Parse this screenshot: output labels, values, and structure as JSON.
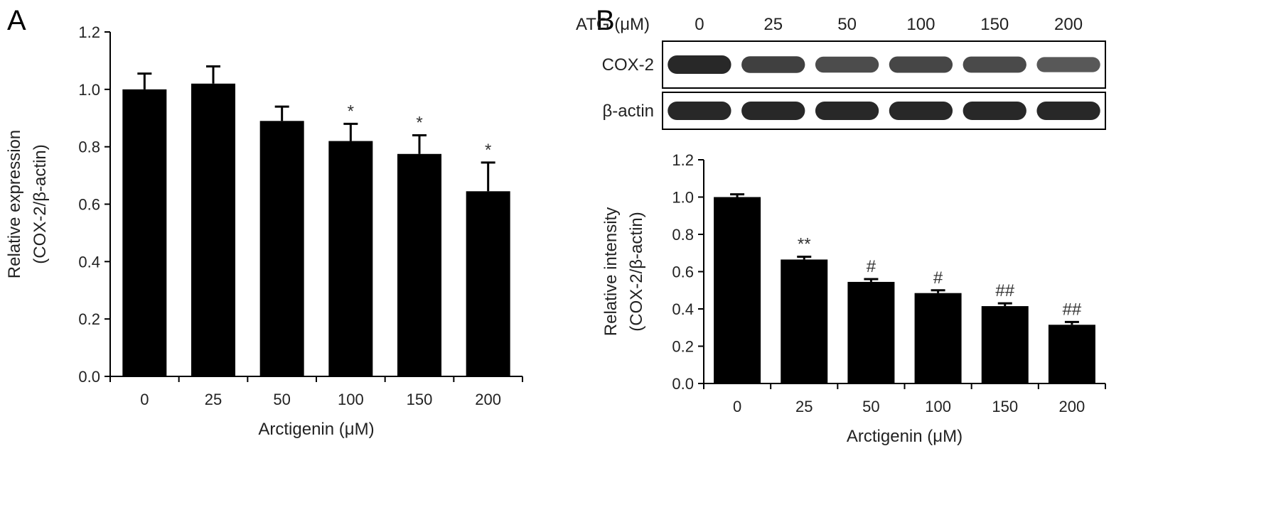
{
  "panel_a": {
    "letter": "A"
  },
  "panel_b": {
    "letter": "B",
    "blot": {
      "header_label": "ATG (μM)",
      "lane_labels": [
        "0",
        "25",
        "50",
        "100",
        "150",
        "200"
      ],
      "rows": [
        {
          "label": "COX-2",
          "band_intensity": [
            1.0,
            0.8,
            0.7,
            0.75,
            0.72,
            0.6
          ]
        },
        {
          "label": "β-actin",
          "band_intensity": [
            1.0,
            1.0,
            1.0,
            1.0,
            1.0,
            1.0
          ]
        }
      ]
    }
  },
  "chart_data": [
    {
      "type": "bar",
      "panel": "A",
      "categories": [
        "0",
        "25",
        "50",
        "100",
        "150",
        "200"
      ],
      "values": [
        1.0,
        1.02,
        0.89,
        0.82,
        0.775,
        0.645
      ],
      "error": [
        0.055,
        0.06,
        0.05,
        0.06,
        0.065,
        0.1
      ],
      "significance": [
        "",
        "",
        "",
        "*",
        "*",
        "*"
      ],
      "xlabel": "Arctigenin (μM)",
      "ylabel_line1": "Relative expression",
      "ylabel_line2": "(COX-2/β-actin)",
      "ylim": [
        0,
        1.2
      ],
      "yticks": [
        "0.0",
        "0.2",
        "0.4",
        "0.6",
        "0.8",
        "1.0",
        "1.2"
      ],
      "bar_color": "#000000",
      "grid": false
    },
    {
      "type": "bar",
      "panel": "B",
      "categories": [
        "0",
        "25",
        "50",
        "100",
        "150",
        "200"
      ],
      "values": [
        1.0,
        0.665,
        0.545,
        0.485,
        0.415,
        0.315
      ],
      "error": [
        0.015,
        0.015,
        0.015,
        0.015,
        0.015,
        0.015
      ],
      "significance": [
        "",
        "**",
        "#",
        "#",
        "##",
        "##"
      ],
      "xlabel": "Arctigenin (μM)",
      "ylabel_line1": "Relative intensity",
      "ylabel_line2": "(COX-2/β-actin)",
      "ylim": [
        0,
        1.2
      ],
      "yticks": [
        "0.0",
        "0.2",
        "0.4",
        "0.6",
        "0.8",
        "1.0",
        "1.2"
      ],
      "bar_color": "#000000",
      "grid": false
    }
  ]
}
